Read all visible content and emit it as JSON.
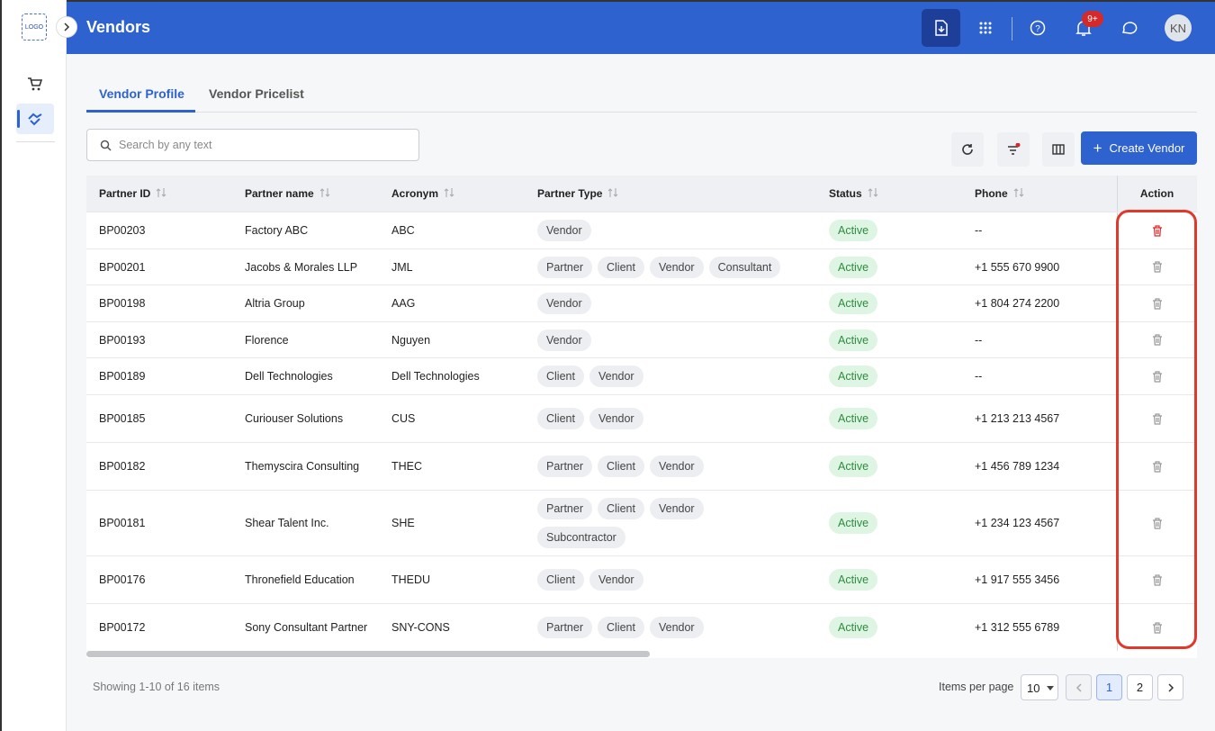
{
  "sidebar": {
    "logo": "LOGO"
  },
  "header": {
    "title": "Vendors",
    "notification_badge": "9+",
    "avatar": "KN"
  },
  "tabs": [
    "Vendor Profile",
    "Vendor Pricelist"
  ],
  "search": {
    "placeholder": "Search by any text"
  },
  "create_button": "Create Vendor",
  "table": {
    "columns": [
      "Partner ID",
      "Partner name",
      "Acronym",
      "Partner Type",
      "Status",
      "Phone",
      "Action"
    ],
    "rows": [
      {
        "id": "BP00203",
        "name": "Factory ABC",
        "acronym": "ABC",
        "types": [
          "Vendor"
        ],
        "status": "Active",
        "phone": "--"
      },
      {
        "id": "BP00201",
        "name": "Jacobs & Morales LLP",
        "acronym": "JML",
        "types": [
          "Partner",
          "Client",
          "Vendor",
          "Consultant"
        ],
        "status": "Active",
        "phone": "+1 555 670 9900"
      },
      {
        "id": "BP00198",
        "name": "Altria Group",
        "acronym": "AAG",
        "types": [
          "Vendor"
        ],
        "status": "Active",
        "phone": "+1 804 274 2200"
      },
      {
        "id": "BP00193",
        "name": "Florence",
        "acronym": "Nguyen",
        "types": [
          "Vendor"
        ],
        "status": "Active",
        "phone": "--"
      },
      {
        "id": "BP00189",
        "name": "Dell Technologies",
        "acronym": "Dell Technologies",
        "types": [
          "Client",
          "Vendor"
        ],
        "status": "Active",
        "phone": "--"
      },
      {
        "id": "BP00185",
        "name": "Curiouser Solutions",
        "acronym": "CUS",
        "types": [
          "Client",
          "Vendor"
        ],
        "status": "Active",
        "phone": "+1 213 213 4567"
      },
      {
        "id": "BP00182",
        "name": "Themyscira Consulting",
        "acronym": "THEC",
        "types": [
          "Partner",
          "Client",
          "Vendor"
        ],
        "status": "Active",
        "phone": "+1 456 789 1234"
      },
      {
        "id": "BP00181",
        "name": "Shear Talent Inc.",
        "acronym": "SHE",
        "types": [
          "Partner",
          "Client",
          "Vendor",
          "Subcontractor"
        ],
        "status": "Active",
        "phone": "+1 234 123 4567"
      },
      {
        "id": "BP00176",
        "name": "Thronefield Education",
        "acronym": "THEDU",
        "types": [
          "Client",
          "Vendor"
        ],
        "status": "Active",
        "phone": "+1 917 555 3456"
      },
      {
        "id": "BP00172",
        "name": "Sony Consultant Partner",
        "acronym": "SNY-CONS",
        "types": [
          "Partner",
          "Client",
          "Vendor"
        ],
        "status": "Active",
        "phone": "+1 312 555 6789"
      }
    ]
  },
  "footer": {
    "showing": "Showing 1-10 of 16 items",
    "items_per_page_label": "Items per page",
    "page_size": "10",
    "pages": [
      "1",
      "2"
    ]
  }
}
